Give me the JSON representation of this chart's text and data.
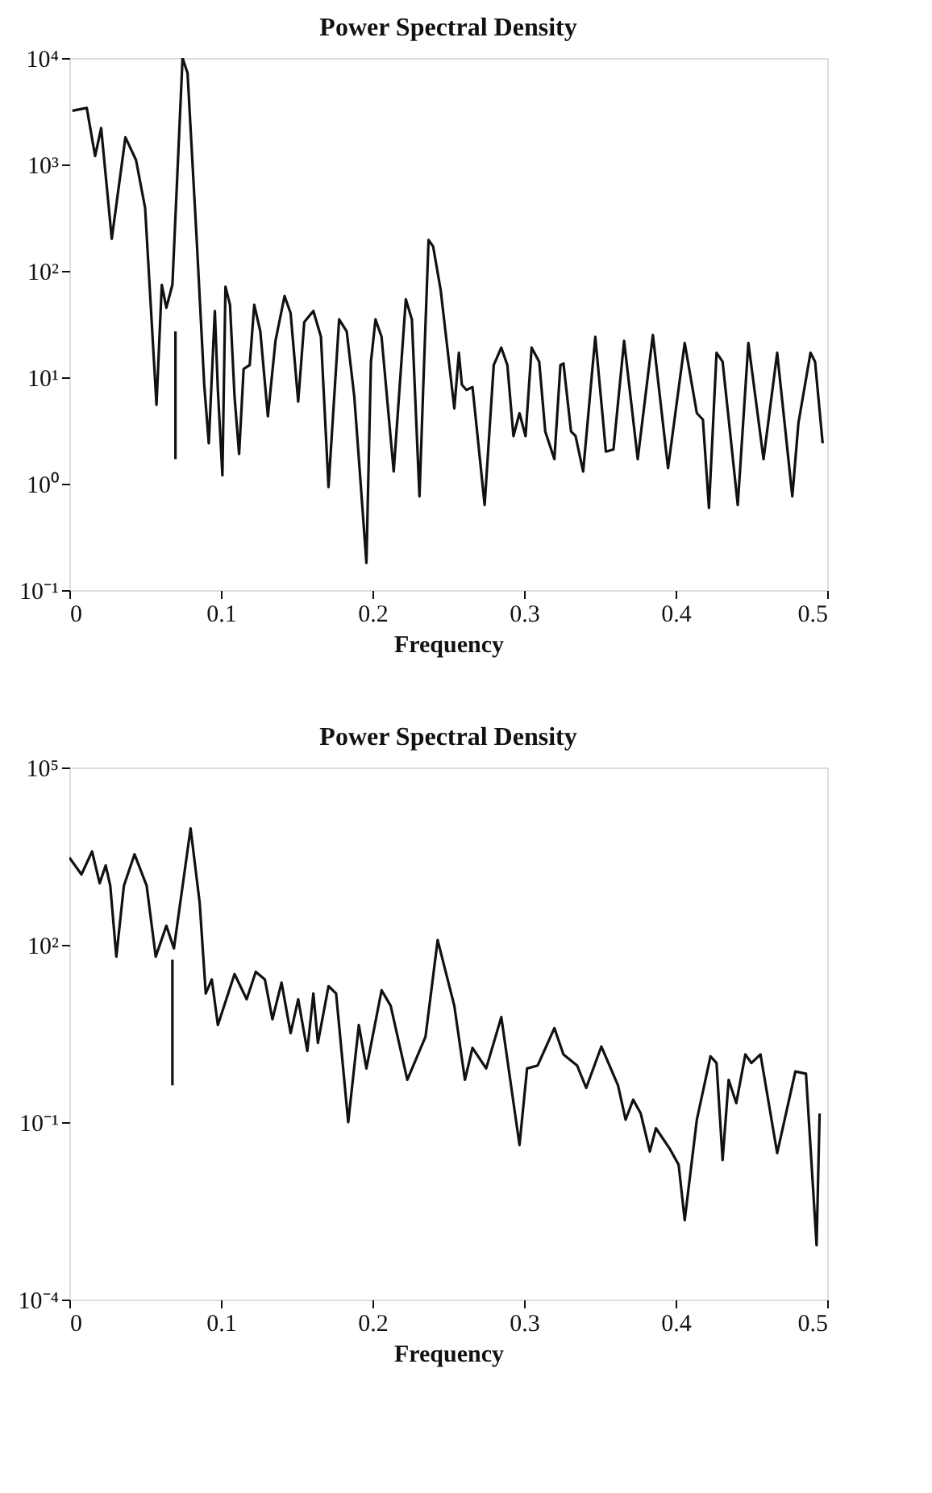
{
  "chart_data": [
    {
      "type": "line",
      "title": "Power Spectral Density",
      "xlabel": "Frequency",
      "log": "y",
      "grid": false,
      "marker": "none",
      "line_style": "solid",
      "xlim": [
        0,
        0.5
      ],
      "xticks": [
        0,
        0.1,
        0.2,
        0.3,
        0.4,
        0.5
      ],
      "ylim": [
        0.1,
        10000
      ],
      "yticks": [
        {
          "value": 0.1,
          "label": "10⁻¹"
        },
        {
          "value": 1,
          "label": "10⁰"
        },
        {
          "value": 10,
          "label": "10¹"
        },
        {
          "value": 100,
          "label": "10²"
        },
        {
          "value": 1000,
          "label": "10³"
        },
        {
          "value": 10000,
          "label": "10⁴"
        }
      ],
      "series": [
        {
          "color": "#111111",
          "x": [
            0.002,
            0.0115,
            0.017,
            0.021,
            0.028,
            0.037,
            0.044,
            0.05,
            0.0575,
            0.061,
            0.064,
            0.068,
            0.0747,
            0.078,
            0.084,
            0.089,
            0.092,
            0.096,
            0.098,
            0.101,
            0.103,
            0.106,
            0.109,
            0.112,
            0.115,
            0.119,
            0.122,
            0.126,
            0.131,
            0.136,
            0.142,
            0.146,
            0.151,
            0.155,
            0.161,
            0.166,
            0.171,
            0.178,
            0.183,
            0.188,
            0.192,
            0.196,
            0.199,
            0.202,
            0.206,
            0.214,
            0.222,
            0.226,
            0.231,
            0.234,
            0.237,
            0.24,
            0.245,
            0.254,
            0.257,
            0.259,
            0.262,
            0.266,
            0.274,
            0.28,
            0.285,
            0.289,
            0.293,
            0.297,
            0.301,
            0.305,
            0.31,
            0.314,
            0.32,
            0.324,
            0.326,
            0.331,
            0.334,
            0.339,
            0.347,
            0.354,
            0.359,
            0.366,
            0.375,
            0.385,
            0.395,
            0.406,
            0.414,
            0.418,
            0.422,
            0.427,
            0.431,
            0.441,
            0.448,
            0.458,
            0.467,
            0.477,
            0.481,
            0.489,
            0.492,
            0.497
          ],
          "values": [
            3200,
            3400,
            1200,
            2200,
            200,
            1800,
            1100,
            390,
            5.5,
            74,
            45,
            74,
            10000,
            7200,
            200,
            8.5,
            2.4,
            42,
            7.6,
            1.2,
            71,
            48,
            6.6,
            1.9,
            12,
            13,
            48,
            27,
            4.3,
            22,
            58,
            40,
            5.9,
            33,
            42,
            24,
            0.93,
            35,
            27,
            6.6,
            1.1,
            0.18,
            14,
            35,
            24,
            1.3,
            54,
            35,
            0.76,
            13,
            195,
            170,
            66,
            5.1,
            17,
            8.5,
            7.6,
            8.1,
            0.63,
            13,
            19,
            13,
            2.8,
            4.6,
            2.8,
            19,
            14,
            3.1,
            1.7,
            13,
            13.5,
            3.1,
            2.8,
            1.3,
            24,
            2.0,
            2.1,
            22,
            1.7,
            25,
            1.4,
            21,
            4.6,
            4.0,
            0.59,
            17,
            14,
            0.63,
            21,
            1.7,
            17,
            0.76,
            3.7,
            17,
            14,
            2.4
          ]
        },
        {
          "color": "#111111",
          "x": [
            0.07,
            0.07
          ],
          "values": [
            27,
            1.7
          ]
        }
      ]
    },
    {
      "type": "line",
      "title": "Power Spectral Density",
      "xlabel": "Frequency",
      "log": "y",
      "grid": false,
      "marker": "none",
      "line_style": "solid",
      "xlim": [
        0,
        0.5
      ],
      "xticks": [
        0,
        0.1,
        0.2,
        0.3,
        0.4,
        0.5
      ],
      "ylim": [
        0.0001,
        100000
      ],
      "yticks": [
        {
          "value": 0.0001,
          "label": "10⁻⁴"
        },
        {
          "value": 0.1,
          "label": "10⁻¹"
        },
        {
          "value": 100,
          "label": "10²"
        },
        {
          "value": 100000,
          "label": "10⁵"
        }
      ],
      "series": [
        {
          "color": "#111111",
          "x": [
            0,
            0.008,
            0.015,
            0.02,
            0.024,
            0.027,
            0.031,
            0.036,
            0.043,
            0.051,
            0.057,
            0.064,
            0.069,
            0.08,
            0.086,
            0.09,
            0.094,
            0.098,
            0.109,
            0.117,
            0.123,
            0.129,
            0.134,
            0.14,
            0.146,
            0.151,
            0.157,
            0.161,
            0.164,
            0.171,
            0.176,
            0.184,
            0.191,
            0.196,
            0.206,
            0.212,
            0.223,
            0.235,
            0.243,
            0.254,
            0.261,
            0.266,
            0.275,
            0.285,
            0.297,
            0.302,
            0.309,
            0.32,
            0.326,
            0.335,
            0.341,
            0.351,
            0.362,
            0.367,
            0.372,
            0.377,
            0.383,
            0.387,
            0.396,
            0.402,
            0.406,
            0.414,
            0.423,
            0.427,
            0.431,
            0.435,
            0.44,
            0.446,
            0.45,
            0.456,
            0.467,
            0.479,
            0.486,
            0.493,
            0.495
          ],
          "values": [
            3000,
            1550,
            3800,
            1100,
            2200,
            1000,
            63,
            1000,
            3400,
            1000,
            63,
            210,
            87,
            9300,
            510,
            15,
            26,
            4.4,
            32,
            12,
            35,
            26,
            5.5,
            23,
            3.2,
            12,
            1.6,
            15,
            2.2,
            20,
            15,
            0.1,
            4.4,
            0.81,
            17,
            9.3,
            0.52,
            2.8,
            120,
            9.3,
            0.52,
            1.8,
            0.81,
            6.0,
            0.041,
            0.81,
            0.91,
            3.9,
            1.4,
            0.91,
            0.38,
            1.9,
            0.42,
            0.11,
            0.24,
            0.14,
            0.032,
            0.079,
            0.036,
            0.019,
            0.0022,
            0.11,
            1.3,
            1.0,
            0.023,
            0.52,
            0.21,
            1.4,
            1.0,
            1.4,
            0.03,
            0.72,
            0.66,
            0.00083,
            0.14
          ]
        },
        {
          "color": "#111111",
          "x": [
            0.068,
            0.068
          ],
          "values": [
            56,
            0.42
          ]
        }
      ]
    }
  ]
}
